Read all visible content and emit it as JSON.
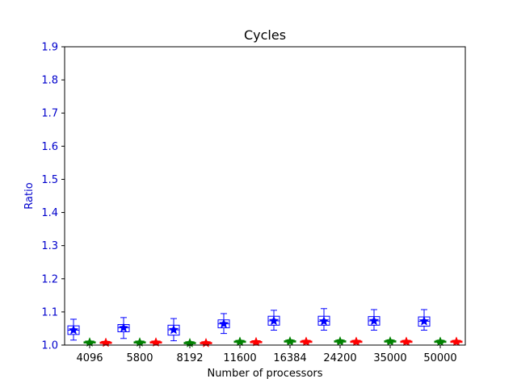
{
  "chart_data": {
    "type": "box",
    "title": "Cycles",
    "xlabel": "Number of processors",
    "ylabel": "Ratio",
    "categories": [
      "4096",
      "5800",
      "8192",
      "11600",
      "16384",
      "24200",
      "35000",
      "50000"
    ],
    "ylim": [
      1.0,
      1.9
    ],
    "yticks": [
      "1.0",
      "1.1",
      "1.2",
      "1.3",
      "1.4",
      "1.5",
      "1.6",
      "1.7",
      "1.8",
      "1.9"
    ],
    "grid": false,
    "series": [
      {
        "color": "#0000ff",
        "boxes": [
          {
            "whislo": 1.015,
            "q1": 1.032,
            "med": 1.045,
            "q3": 1.058,
            "whishi": 1.078,
            "mean": 1.045
          },
          {
            "whislo": 1.02,
            "q1": 1.04,
            "med": 1.052,
            "q3": 1.062,
            "whishi": 1.083,
            "mean": 1.052
          },
          {
            "whislo": 1.013,
            "q1": 1.03,
            "med": 1.046,
            "q3": 1.06,
            "whishi": 1.08,
            "mean": 1.046
          },
          {
            "whislo": 1.035,
            "q1": 1.052,
            "med": 1.064,
            "q3": 1.076,
            "whishi": 1.095,
            "mean": 1.064
          },
          {
            "whislo": 1.045,
            "q1": 1.06,
            "med": 1.073,
            "q3": 1.087,
            "whishi": 1.105,
            "mean": 1.073
          },
          {
            "whislo": 1.045,
            "q1": 1.06,
            "med": 1.072,
            "q3": 1.087,
            "whishi": 1.11,
            "mean": 1.072
          },
          {
            "whislo": 1.045,
            "q1": 1.06,
            "med": 1.073,
            "q3": 1.086,
            "whishi": 1.107,
            "mean": 1.073
          },
          {
            "whislo": 1.045,
            "q1": 1.057,
            "med": 1.072,
            "q3": 1.085,
            "whishi": 1.107,
            "mean": 1.072
          }
        ]
      },
      {
        "color": "#008000",
        "boxes": [
          {
            "whislo": 1.004,
            "q1": 1.006,
            "med": 1.008,
            "q3": 1.01,
            "whishi": 1.012,
            "mean": 1.008
          },
          {
            "whislo": 1.004,
            "q1": 1.006,
            "med": 1.008,
            "q3": 1.01,
            "whishi": 1.012,
            "mean": 1.008
          },
          {
            "whislo": 1.002,
            "q1": 1.004,
            "med": 1.006,
            "q3": 1.008,
            "whishi": 1.01,
            "mean": 1.006
          },
          {
            "whislo": 1.005,
            "q1": 1.008,
            "med": 1.01,
            "q3": 1.012,
            "whishi": 1.014,
            "mean": 1.01
          },
          {
            "whislo": 1.006,
            "q1": 1.009,
            "med": 1.011,
            "q3": 1.013,
            "whishi": 1.016,
            "mean": 1.011
          },
          {
            "whislo": 1.006,
            "q1": 1.009,
            "med": 1.011,
            "q3": 1.013,
            "whishi": 1.016,
            "mean": 1.011
          },
          {
            "whislo": 1.006,
            "q1": 1.009,
            "med": 1.011,
            "q3": 1.013,
            "whishi": 1.016,
            "mean": 1.011
          },
          {
            "whislo": 1.006,
            "q1": 1.008,
            "med": 1.01,
            "q3": 1.012,
            "whishi": 1.015,
            "mean": 1.01
          }
        ]
      },
      {
        "color": "#ff0000",
        "boxes": [
          {
            "whislo": 1.003,
            "q1": 1.005,
            "med": 1.007,
            "q3": 1.009,
            "whishi": 1.011,
            "mean": 1.007
          },
          {
            "whislo": 1.004,
            "q1": 1.006,
            "med": 1.008,
            "q3": 1.01,
            "whishi": 1.012,
            "mean": 1.008
          },
          {
            "whislo": 1.002,
            "q1": 1.004,
            "med": 1.006,
            "q3": 1.008,
            "whishi": 1.01,
            "mean": 1.006
          },
          {
            "whislo": 1.004,
            "q1": 1.007,
            "med": 1.009,
            "q3": 1.011,
            "whishi": 1.013,
            "mean": 1.009
          },
          {
            "whislo": 1.005,
            "q1": 1.008,
            "med": 1.01,
            "q3": 1.012,
            "whishi": 1.014,
            "mean": 1.01
          },
          {
            "whislo": 1.005,
            "q1": 1.008,
            "med": 1.01,
            "q3": 1.012,
            "whishi": 1.014,
            "mean": 1.01
          },
          {
            "whislo": 1.005,
            "q1": 1.008,
            "med": 1.01,
            "q3": 1.012,
            "whishi": 1.014,
            "mean": 1.01
          },
          {
            "whislo": 1.005,
            "q1": 1.008,
            "med": 1.01,
            "q3": 1.012,
            "whishi": 1.014,
            "mean": 1.01
          }
        ]
      }
    ]
  }
}
